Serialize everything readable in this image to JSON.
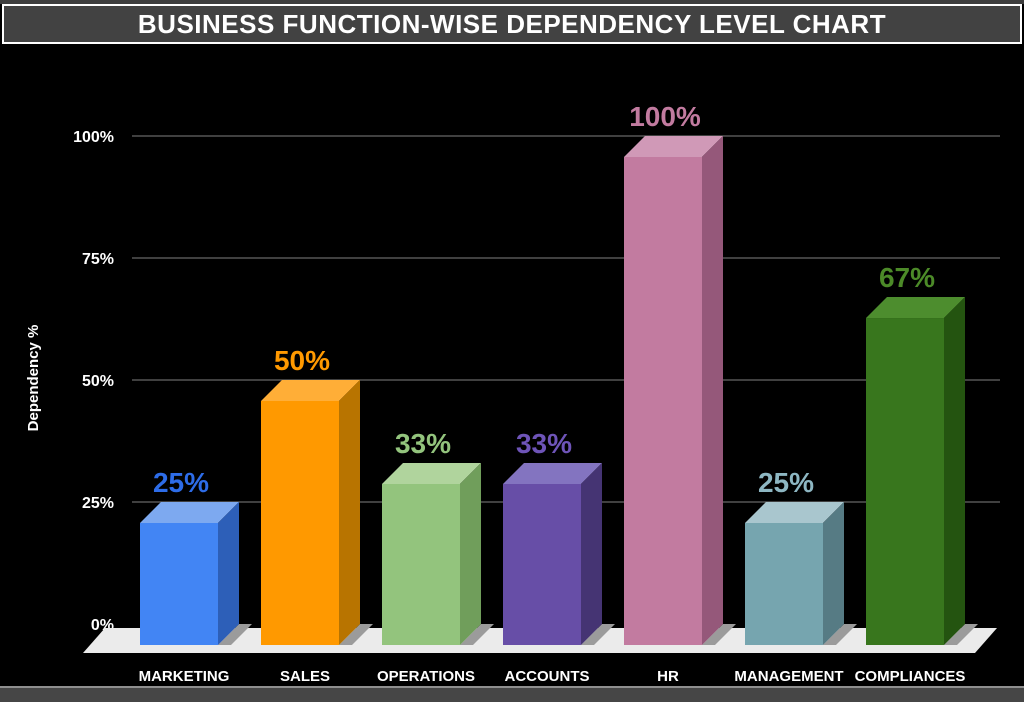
{
  "title": "BUSINESS FUNCTION-WISE DEPENDENCY LEVEL CHART",
  "chart_data": {
    "type": "bar",
    "style": "3d-column",
    "title": "BUSINESS FUNCTION-WISE DEPENDENCY LEVEL CHART",
    "categories": [
      "MARKETING",
      "SALES",
      "OPERATIONS",
      "ACCOUNTS",
      "HR",
      "MANAGEMENT",
      "COMPLIANCES"
    ],
    "values": [
      25,
      50,
      33,
      33,
      100,
      25,
      67
    ],
    "data_labels": [
      "25%",
      "50%",
      "33%",
      "33%",
      "100%",
      "25%",
      "67%"
    ],
    "xlabel": "",
    "ylabel": "Dependency %",
    "ylim": [
      0,
      100
    ],
    "y_ticks": [
      {
        "value": 0,
        "label": "0%"
      },
      {
        "value": 25,
        "label": "25%"
      },
      {
        "value": 50,
        "label": "50%"
      },
      {
        "value": 75,
        "label": "75%"
      },
      {
        "value": 100,
        "label": "100%"
      }
    ],
    "grid": true,
    "legend": false,
    "background": "#000000",
    "gridline_color": "#555555",
    "floor_color": "#ebebeb",
    "shadow_color": "#9b9b9b",
    "axis_text_color": "#ffffff",
    "bars": [
      {
        "category": "MARKETING",
        "value": 25,
        "label": "25%",
        "front": "#4285f4",
        "top": "#7da9f0",
        "side": "#2d5fb8",
        "label_color": "#2d6ce8"
      },
      {
        "category": "SALES",
        "value": 50,
        "label": "50%",
        "front": "#ff9900",
        "top": "#ffae37",
        "side": "#b87400",
        "label_color": "#ff9900"
      },
      {
        "category": "OPERATIONS",
        "value": 33,
        "label": "33%",
        "front": "#93c47d",
        "top": "#b0d49d",
        "side": "#709e5b",
        "label_color": "#93c47d"
      },
      {
        "category": "ACCOUNTS",
        "value": 33,
        "label": "33%",
        "front": "#674ea7",
        "top": "#8374c0",
        "side": "#453473",
        "label_color": "#6e54b8"
      },
      {
        "category": "HR",
        "value": 100,
        "label": "100%",
        "front": "#c27ba0",
        "top": "#d099b7",
        "side": "#95587a",
        "label_color": "#c27ba0"
      },
      {
        "category": "MANAGEMENT",
        "value": 25,
        "label": "25%",
        "front": "#76a5af",
        "top": "#a9c6ce",
        "side": "#567b84",
        "label_color": "#8db6c2"
      },
      {
        "category": "COMPLIANCES",
        "value": 67,
        "label": "67%",
        "front": "#38761d",
        "top": "#4d8d2e",
        "side": "#245410",
        "label_color": "#4c8a28"
      }
    ]
  },
  "frame": {
    "top_bar_color": "#424242",
    "bottom_bar_color": "#464646",
    "border_color": "#ffffff"
  }
}
